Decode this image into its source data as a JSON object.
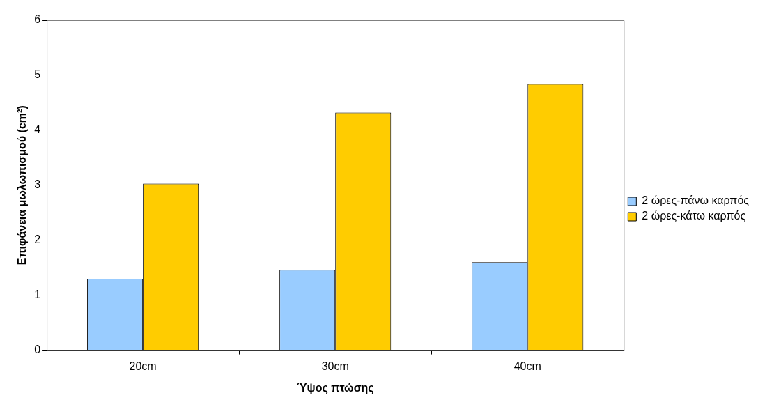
{
  "chart_data": {
    "type": "bar",
    "xlabel": "Ύψος πτώσης",
    "ylabel": "Επιφάνεια μωλωπισμού (cm²)",
    "categories": [
      "20cm",
      "30cm",
      "40cm"
    ],
    "series": [
      {
        "name": "2 ώρες-πάνω καρπός",
        "color": "#99ccff",
        "values": [
          1.3,
          1.46,
          1.6
        ]
      },
      {
        "name": "2 ώρες-κάτω καρπός",
        "color": "#ffcc00",
        "values": [
          3.03,
          4.32,
          4.84
        ]
      }
    ],
    "ylim": [
      0,
      6
    ],
    "yticks": [
      0,
      1,
      2,
      3,
      4,
      5,
      6
    ],
    "grid": false,
    "legend": "right"
  }
}
